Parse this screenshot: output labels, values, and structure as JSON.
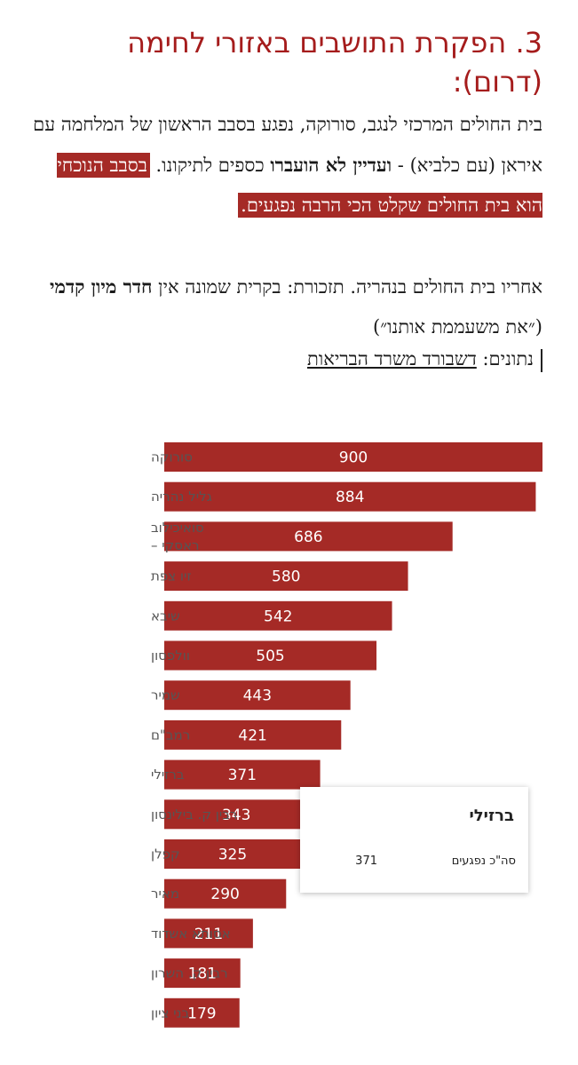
{
  "article": {
    "heading_line1": "3. הפקרת התושבים באזורי לחימה",
    "heading_line2": "(דרום):",
    "p1_part1": "בית החולים המרכזי לנגב, סורוקה, נפגע בסבב הראשון של המלחמה עם איראן (עם כלביא) - ",
    "p1_bold": "ועדיין לא הועברו",
    "p1_part2": " כספים לתיקונו. ",
    "p1_highlight": "בסבב הנוכחי הוא בית החולים שקלט הכי הרבה נפגעים.",
    "p2_part1": "אחריו בית החולים בנהריה. תזכורת: בקרית שמונה אין ",
    "p2_bold": "חדר מיון קדמי",
    "p2_part2": " (״את משעממת אותנו״)",
    "source_label": "נתונים: ",
    "source_link": "דשבורד משרד הבריאות"
  },
  "colors": {
    "bar": "#a52a26",
    "heading": "#a51c1c",
    "highlight": "#a52a26"
  },
  "tooltip": {
    "title": "ברזילי",
    "label": "סה\"כ נפגעים",
    "value": "371"
  },
  "chart_data": {
    "type": "bar",
    "orientation": "horizontal",
    "categories": [
      "סורוקה",
      "גליל נהריה",
      "סואיכילוב ראסקי –",
      "זיו צפת",
      "שיבא",
      "וולפסון",
      "שמיר",
      "רמב\"ם",
      "ברזילי",
      "רבין ק. בילינסון",
      "קפלן",
      "מאיר",
      "אסותא אשדוד",
      "רבין ק. השרון",
      "בני ציון"
    ],
    "category_lines": [
      [
        "סורוקה"
      ],
      [
        "גליל נהריה"
      ],
      [
        "סואיכילוב",
        "ראסקי –"
      ],
      [
        "זיו צפת"
      ],
      [
        "שיבא"
      ],
      [
        "וולפסון"
      ],
      [
        "שמיר"
      ],
      [
        "רמב\"ם"
      ],
      [
        "ברזילי"
      ],
      [
        "רבין ק. בילינסון"
      ],
      [
        "קפלן"
      ],
      [
        "מאיר"
      ],
      [
        "אסותא אשדוד"
      ],
      [
        "רבין ק. השרון"
      ],
      [
        "בני ציון"
      ]
    ],
    "values": [
      900,
      884,
      686,
      580,
      542,
      505,
      443,
      421,
      371,
      343,
      325,
      290,
      211,
      181,
      179
    ],
    "data_labels": [
      "900",
      "884",
      "686",
      "580",
      "542",
      "505",
      "443",
      "421",
      "371",
      "343",
      "325",
      "290",
      "211",
      "181",
      "179"
    ],
    "xlim": [
      0,
      900
    ],
    "grid": false,
    "legend": "none"
  }
}
